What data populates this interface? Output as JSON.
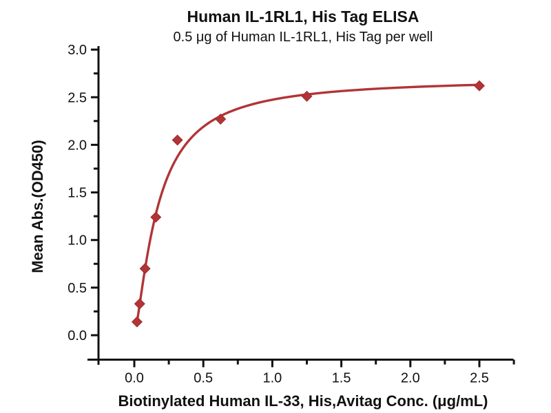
{
  "chart_data": {
    "type": "scatter",
    "title": "Human IL-1RL1, His Tag ELISA",
    "subtitle": "0.5 μg of Human IL-1RL1, His Tag per well",
    "xlabel": "Biotinylated Human IL-33, His,Avitag Conc. (μg/mL)",
    "ylabel": "Mean Abs.(OD450)",
    "x": [
      0.0195,
      0.039,
      0.078,
      0.156,
      0.3125,
      0.625,
      1.25,
      2.5
    ],
    "y": [
      0.14,
      0.33,
      0.7,
      1.24,
      2.05,
      2.27,
      2.51,
      2.62
    ],
    "x_major_ticks": [
      0.0,
      0.5,
      1.0,
      1.5,
      2.0,
      2.5
    ],
    "x_minor_ticks": [
      0.25,
      0.75,
      1.25,
      1.75,
      2.25,
      2.75
    ],
    "y_major_ticks": [
      0.0,
      0.5,
      1.0,
      1.5,
      2.0,
      2.5,
      3.0
    ],
    "y_minor_ticks": [
      0.25,
      0.75,
      1.25,
      1.75,
      2.25,
      2.75
    ],
    "tick_label_decimals": 1,
    "xlim": [
      -0.26,
      2.75
    ],
    "ylim": [
      -0.26,
      3.03
    ],
    "marker": "diamond",
    "line_color": "#b23436",
    "marker_color": "#b23436",
    "marker_edge_color": "#9e2b2e",
    "axis_color": "#111111",
    "grid": false,
    "legend": false,
    "fit": {
      "model": "4PL",
      "bottom": 0.0,
      "top": 2.7,
      "ec50": 0.17,
      "hill": 1.35
    },
    "curve_x_range": [
      0.016,
      2.5
    ]
  }
}
